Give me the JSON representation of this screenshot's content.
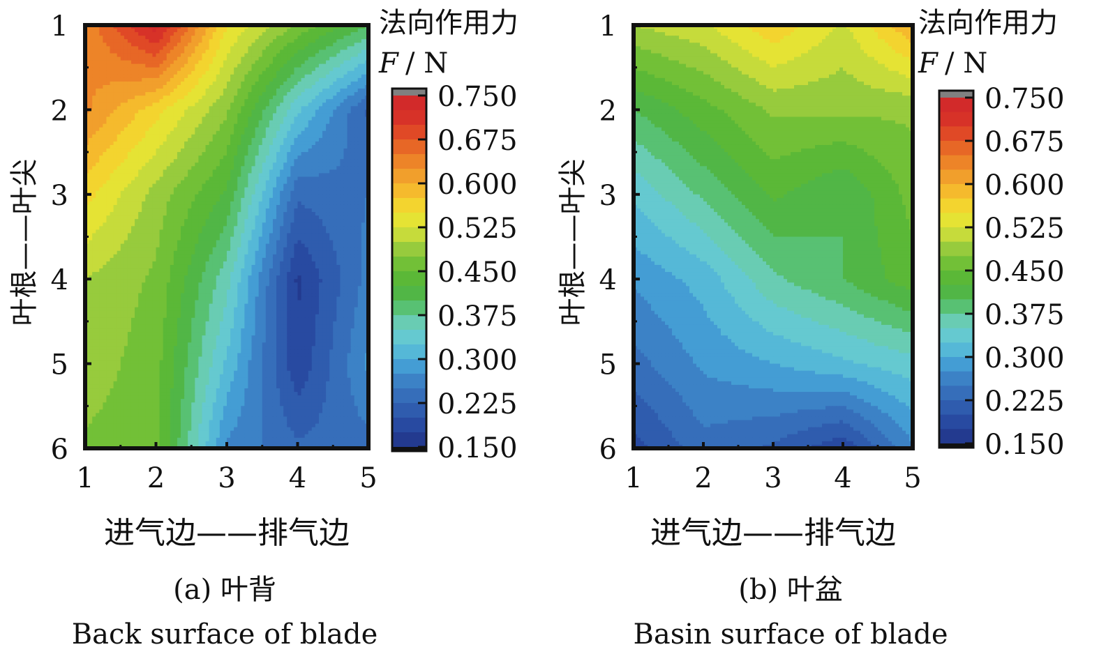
{
  "colorbar": {
    "title_cn": "法向作用力",
    "title_var": "F",
    "title_unit": "/ N",
    "ticks": [
      "0.750",
      "0.675",
      "0.600",
      "0.525",
      "0.450",
      "0.375",
      "0.300",
      "0.225",
      "0.150"
    ],
    "min": 0.15,
    "max": 0.75,
    "levels": 24,
    "colors": [
      "#233a8f",
      "#2a4ea6",
      "#3366b5",
      "#3b7ec4",
      "#45a0d6",
      "#5cc3d8",
      "#6fd0c8",
      "#58c276",
      "#4fb43c",
      "#62bb33",
      "#8cc83e",
      "#c9dc3b",
      "#efe532",
      "#f6c52d",
      "#f2a22c",
      "#ec7f27",
      "#e55a25",
      "#d93428",
      "#d22a2a"
    ],
    "over_color": "#808080",
    "under_color": "#111111"
  },
  "chart_data": [
    {
      "type": "heatmap",
      "caption_label": "(a) 叶背",
      "caption_en": "Back surface of blade",
      "xlabel": "进气边——排气边",
      "ylabel": "叶根——叶尖",
      "x": [
        1,
        2,
        3,
        4,
        5
      ],
      "y": [
        1,
        2,
        3,
        4,
        5,
        6
      ],
      "xlim": [
        1,
        5
      ],
      "ylim": [
        1,
        6
      ],
      "y_inverted": true,
      "xticks": [
        "1",
        "2",
        "3",
        "4",
        "5"
      ],
      "yticks": [
        "1",
        "2",
        "3",
        "4",
        "5",
        "6"
      ],
      "values": [
        [
          0.63,
          0.74,
          0.55,
          0.47,
          0.4
        ],
        [
          0.63,
          0.56,
          0.48,
          0.33,
          0.22
        ],
        [
          0.56,
          0.49,
          0.42,
          0.23,
          0.25
        ],
        [
          0.5,
          0.47,
          0.36,
          0.17,
          0.26
        ],
        [
          0.49,
          0.46,
          0.32,
          0.18,
          0.28
        ],
        [
          0.47,
          0.46,
          0.27,
          0.23,
          0.24
        ]
      ]
    },
    {
      "type": "heatmap",
      "caption_label": "(b) 叶盆",
      "caption_en": "Basin surface of blade",
      "xlabel": "进气边——排气边",
      "ylabel": "叶根——叶尖",
      "x": [
        1,
        2,
        3,
        4,
        5
      ],
      "y": [
        1,
        2,
        3,
        4,
        5,
        6
      ],
      "xlim": [
        1,
        5
      ],
      "ylim": [
        1,
        6
      ],
      "y_inverted": true,
      "xticks": [
        "1",
        "2",
        "3",
        "4",
        "5"
      ],
      "yticks": [
        "1",
        "2",
        "3",
        "4",
        "5",
        "6"
      ],
      "values": [
        [
          0.5,
          0.52,
          0.57,
          0.52,
          0.6
        ],
        [
          0.4,
          0.44,
          0.48,
          0.48,
          0.48
        ],
        [
          0.33,
          0.38,
          0.43,
          0.4,
          0.46
        ],
        [
          0.28,
          0.31,
          0.37,
          0.4,
          0.44
        ],
        [
          0.24,
          0.28,
          0.3,
          0.32,
          0.34
        ],
        [
          0.19,
          0.24,
          0.22,
          0.18,
          0.27
        ]
      ]
    }
  ]
}
